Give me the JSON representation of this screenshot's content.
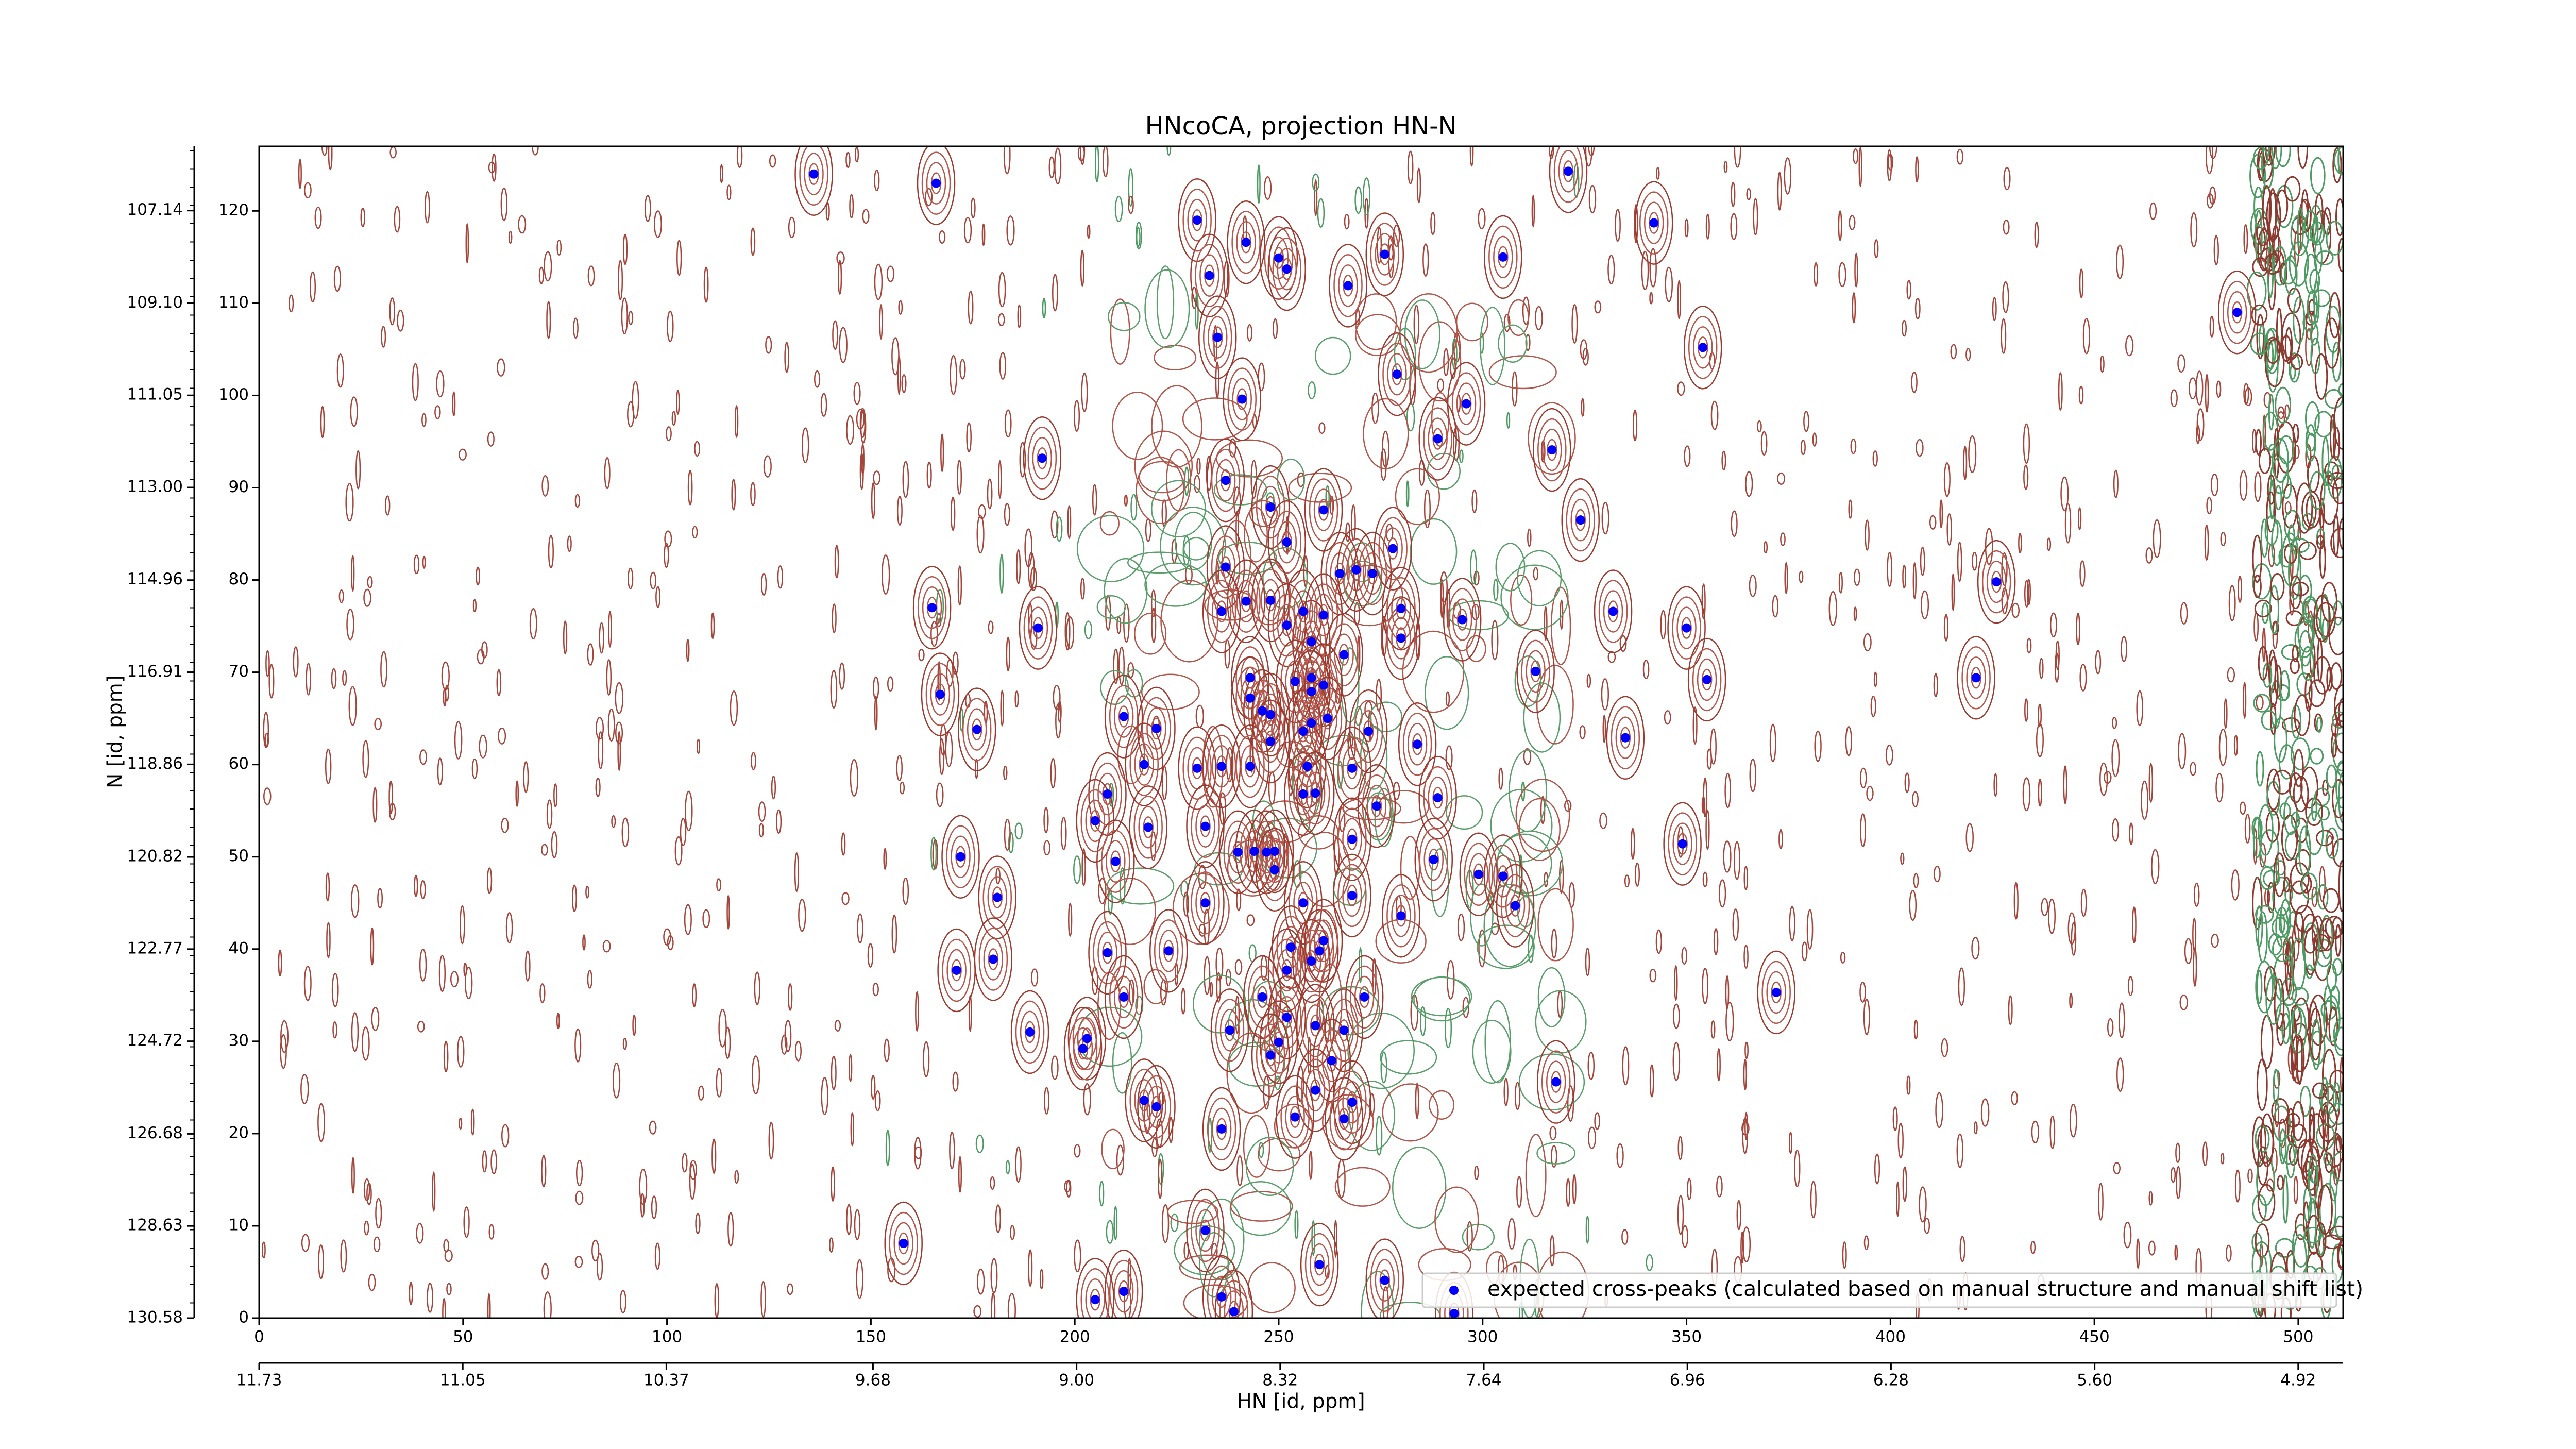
{
  "chart_data": {
    "type": "scatter",
    "title": "HNcoCA, projection HN-N",
    "xlabel": "HN [id, ppm]",
    "ylabel": "N [id, ppm]",
    "xlim": [
      0,
      511
    ],
    "ylim": [
      0,
      127
    ],
    "xticks": [
      0,
      50,
      100,
      150,
      200,
      250,
      300,
      350,
      400,
      450,
      500
    ],
    "yticks": [
      0,
      10,
      20,
      30,
      40,
      50,
      60,
      70,
      80,
      90,
      100,
      110,
      120
    ],
    "x2lim": [
      11.73,
      4.77
    ],
    "x2ticks": [
      11.73,
      11.05,
      10.37,
      9.68,
      {
        "value": 9,
        "label": "9.00"
      },
      8.32,
      7.64,
      6.96,
      6.28,
      {
        "value": 5.6,
        "label": "5.60"
      },
      4.92
    ],
    "y2lim": [
      130.58,
      105.78
    ],
    "y2ticks": [
      130.58,
      128.63,
      126.68,
      124.72,
      122.77,
      120.82,
      118.86,
      116.91,
      114.96,
      {
        "value": 113,
        "label": "113.00"
      },
      111.05,
      {
        "value": 109.1,
        "label": "109.10"
      },
      107.14
    ],
    "legend": "lower right",
    "series": [
      {
        "name": "expected cross-peaks (calculated based on manual structure and manual shift list)",
        "color": "#0000ff",
        "x": [
          136,
          166,
          230,
          242,
          250,
          252,
          233,
          276,
          305,
          321,
          342,
          267,
          235,
          354,
          279,
          241,
          296,
          289,
          192,
          317,
          237,
          248,
          261,
          324,
          252,
          237,
          265,
          269,
          273,
          278,
          426,
          242,
          248,
          256,
          261,
          236,
          252,
          280,
          295,
          332,
          165,
          191,
          350,
          280,
          266,
          258,
          243,
          254,
          258,
          261,
          313,
          355,
          421,
          167,
          258,
          243,
          246,
          248,
          262,
          258,
          256,
          272,
          176,
          220,
          212,
          248,
          284,
          335,
          230,
          236,
          243,
          217,
          257,
          268,
          208,
          289,
          274,
          205,
          218,
          232,
          256,
          259,
          268,
          349,
          240,
          244,
          247,
          249,
          172,
          210,
          288,
          299,
          305,
          249,
          181,
          232,
          268,
          256,
          308,
          280,
          253,
          260,
          208,
          223,
          258,
          261,
          171,
          180,
          252,
          372,
          212,
          246,
          271,
          252,
          259,
          266,
          238,
          189,
          203,
          250,
          202,
          248,
          263,
          318,
          259,
          217,
          220,
          268,
          236,
          254,
          266,
          232,
          158,
          260,
          276,
          212,
          205,
          236,
          239,
          293,
          485
        ],
        "y": [
          124,
          123,
          119,
          116.6,
          114.9,
          113.7,
          113,
          115.3,
          115,
          124.3,
          118.7,
          111.9,
          106.3,
          105.2,
          102.3,
          99.6,
          99.1,
          95.3,
          93.2,
          94.1,
          90.8,
          87.9,
          87.6,
          86.5,
          84.1,
          81.4,
          80.7,
          81.1,
          80.7,
          83.4,
          79.8,
          77.7,
          77.8,
          76.6,
          76.2,
          76.6,
          75.1,
          76.9,
          75.7,
          76.6,
          77,
          74.8,
          74.8,
          73.7,
          71.9,
          73.3,
          69.4,
          69,
          69.4,
          68.6,
          70.1,
          69.2,
          69.4,
          67.6,
          67.9,
          67.2,
          65.8,
          65.4,
          65,
          64.5,
          63.6,
          63.6,
          63.8,
          63.9,
          65.2,
          62.5,
          62.2,
          62.9,
          59.6,
          59.8,
          59.8,
          60,
          59.8,
          59.6,
          56.8,
          56.4,
          55.5,
          53.9,
          53.2,
          53.3,
          56.8,
          56.9,
          51.9,
          51.4,
          50.5,
          50.6,
          50.5,
          50.6,
          50,
          49.5,
          49.7,
          48.1,
          47.9,
          48.6,
          45.6,
          45,
          45.8,
          45,
          44.7,
          43.6,
          40.2,
          39.8,
          39.6,
          39.8,
          38.7,
          40.9,
          37.7,
          38.9,
          37.7,
          35.3,
          34.8,
          34.8,
          34.8,
          32.6,
          31.7,
          31.2,
          31.2,
          31,
          30.3,
          29.9,
          29.2,
          28.5,
          27.9,
          25.6,
          24.7,
          23.6,
          22.9,
          23.4,
          20.5,
          21.8,
          21.6,
          9.5,
          8.1,
          5.8,
          4.1,
          2.9,
          2,
          2.3,
          0.7,
          0.5,
          109
        ]
      }
    ]
  }
}
